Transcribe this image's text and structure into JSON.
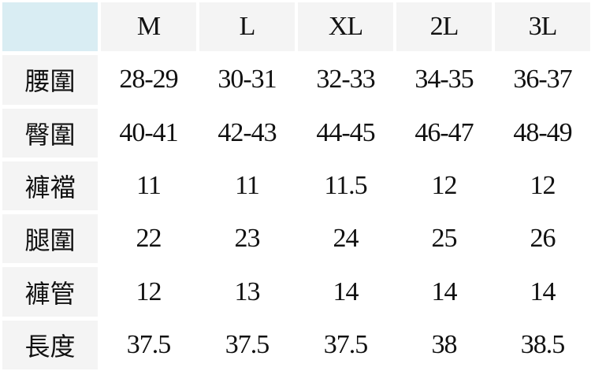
{
  "sizes": [
    "M",
    "L",
    "XL",
    "2L",
    "3L"
  ],
  "rows": [
    {
      "label": "腰圍",
      "values": [
        "28-29",
        "30-31",
        "32-33",
        "34-35",
        "36-37"
      ]
    },
    {
      "label": "臀圍",
      "values": [
        "40-41",
        "42-43",
        "44-45",
        "46-47",
        "48-49"
      ]
    },
    {
      "label": "褲襠",
      "values": [
        "11",
        "11",
        "11.5",
        "12",
        "12"
      ]
    },
    {
      "label": "腿圍",
      "values": [
        "22",
        "23",
        "24",
        "25",
        "26"
      ]
    },
    {
      "label": "褲管",
      "values": [
        "12",
        "13",
        "14",
        "14",
        "14"
      ]
    },
    {
      "label": "長度",
      "values": [
        "37.5",
        "37.5",
        "37.5",
        "38",
        "38.5"
      ]
    }
  ],
  "colors": {
    "corner": "#d9edf3",
    "header": "#f4f4f4"
  }
}
